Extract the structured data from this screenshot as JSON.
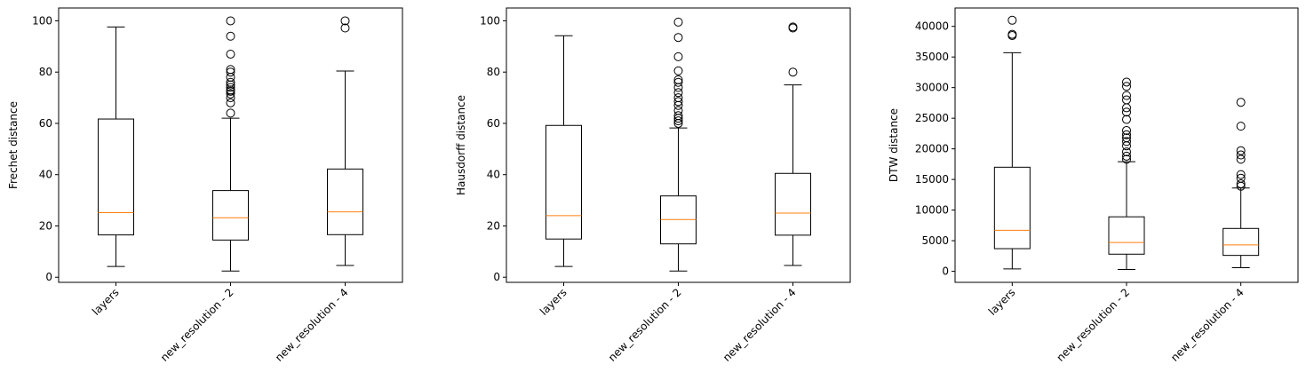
{
  "chart_data": [
    {
      "type": "box",
      "ylabel": "Frechet distance",
      "categories": [
        "layers",
        "new_resolution - 2",
        "new_resolution - 4"
      ],
      "ylim": [
        -2,
        105
      ],
      "yticks": [
        0,
        20,
        40,
        60,
        80,
        100
      ],
      "boxes": [
        {
          "whislo": 4.2,
          "q1": 16.5,
          "med": 25.2,
          "q3": 61.7,
          "whishi": 97.6,
          "fliers": []
        },
        {
          "whislo": 2.4,
          "q1": 14.5,
          "med": 23.2,
          "q3": 33.8,
          "whishi": 62.0,
          "fliers": [
            64,
            68,
            70,
            71.5,
            72.5,
            73,
            74,
            75,
            76,
            78,
            80,
            81,
            87,
            94,
            100
          ]
        },
        {
          "whislo": 4.6,
          "q1": 16.6,
          "med": 25.5,
          "q3": 42.2,
          "whishi": 80.4,
          "fliers": [
            97.2,
            100
          ]
        }
      ]
    },
    {
      "type": "box",
      "ylabel": "Hausdorff distance",
      "categories": [
        "layers",
        "new_resolution - 2",
        "new_resolution - 4"
      ],
      "ylim": [
        -2,
        105
      ],
      "yticks": [
        0,
        20,
        40,
        60,
        80,
        100
      ],
      "boxes": [
        {
          "whislo": 4.2,
          "q1": 14.9,
          "med": 24.0,
          "q3": 59.2,
          "whishi": 94.2,
          "fliers": []
        },
        {
          "whislo": 2.4,
          "q1": 13.0,
          "med": 22.5,
          "q3": 31.7,
          "whishi": 58.2,
          "fliers": [
            60,
            61,
            62,
            63,
            65,
            67,
            68.5,
            70,
            72,
            74,
            76,
            77,
            80.5,
            86,
            93.5,
            99.5
          ]
        },
        {
          "whislo": 4.6,
          "q1": 16.4,
          "med": 25.0,
          "q3": 40.5,
          "whishi": 75.0,
          "fliers": [
            80,
            97.2,
            97.6
          ]
        }
      ]
    },
    {
      "type": "box",
      "ylabel": "DTW distance",
      "categories": [
        "layers",
        "new_resolution - 2",
        "new_resolution - 4"
      ],
      "ylim": [
        -1800,
        43000
      ],
      "yticks": [
        0,
        5000,
        10000,
        15000,
        20000,
        25000,
        30000,
        35000,
        40000
      ],
      "boxes": [
        {
          "whislo": 400,
          "q1": 3700,
          "med": 6700,
          "q3": 17000,
          "whishi": 35700,
          "fliers": [
            38500,
            38700,
            41000
          ]
        },
        {
          "whislo": 300,
          "q1": 2800,
          "med": 4700,
          "q3": 8900,
          "whishi": 17900,
          "fliers": [
            18300,
            18800,
            19500,
            20500,
            21200,
            21800,
            22300,
            23000,
            24800,
            26000,
            26700,
            28000,
            28700,
            30200,
            30900
          ]
        },
        {
          "whislo": 600,
          "q1": 2600,
          "med": 4300,
          "q3": 7000,
          "whishi": 13600,
          "fliers": [
            13900,
            14300,
            15200,
            15800,
            18300,
            19000,
            19700,
            23700,
            27600
          ]
        }
      ]
    }
  ]
}
